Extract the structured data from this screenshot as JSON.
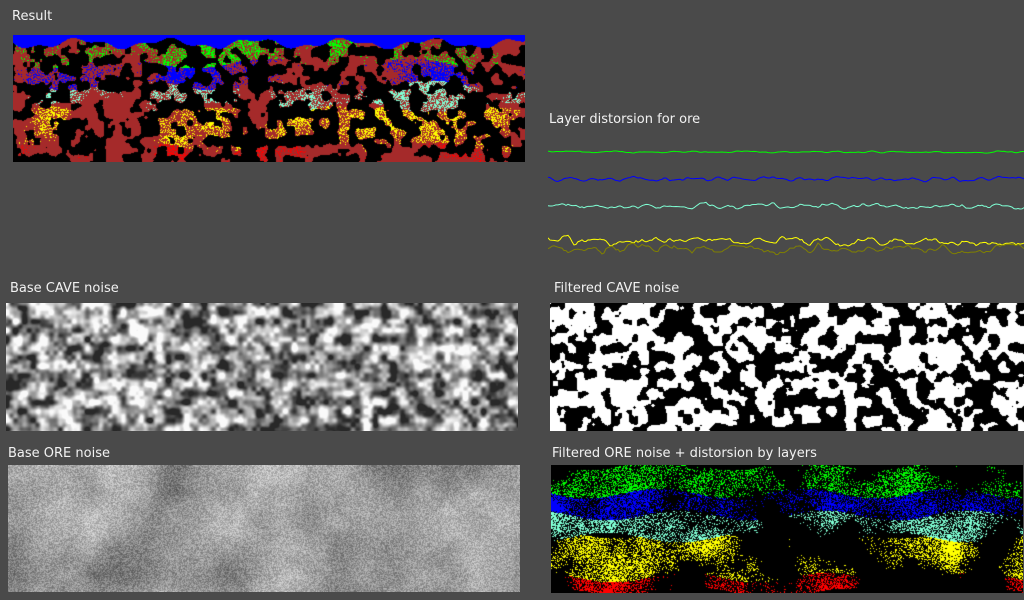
{
  "labels": {
    "result": "Result",
    "layer_distortion": "Layer distorsion for ore",
    "base_cave": "Base CAVE noise",
    "filtered_cave": "Filtered CAVE noise",
    "base_ore": "Base ORE noise",
    "filtered_ore": "Filtered ORE noise + distorsion by layers"
  },
  "colors": {
    "background": "#4a4a4a",
    "sky": "#0000ff",
    "rock": "#a52a2a",
    "cave": "#000000",
    "ore_green": "#00ff00",
    "ore_blue": "#0000ff",
    "ore_aqua": "#7fffd4",
    "ore_yellow": "#ffff00",
    "ore_red": "#ff0000"
  },
  "distortion_layers": [
    {
      "color": "#00ff00"
    },
    {
      "color": "#0000ff"
    },
    {
      "color": "#7fffd4"
    },
    {
      "color": "#ffff00"
    },
    {
      "color": "#808000"
    }
  ]
}
